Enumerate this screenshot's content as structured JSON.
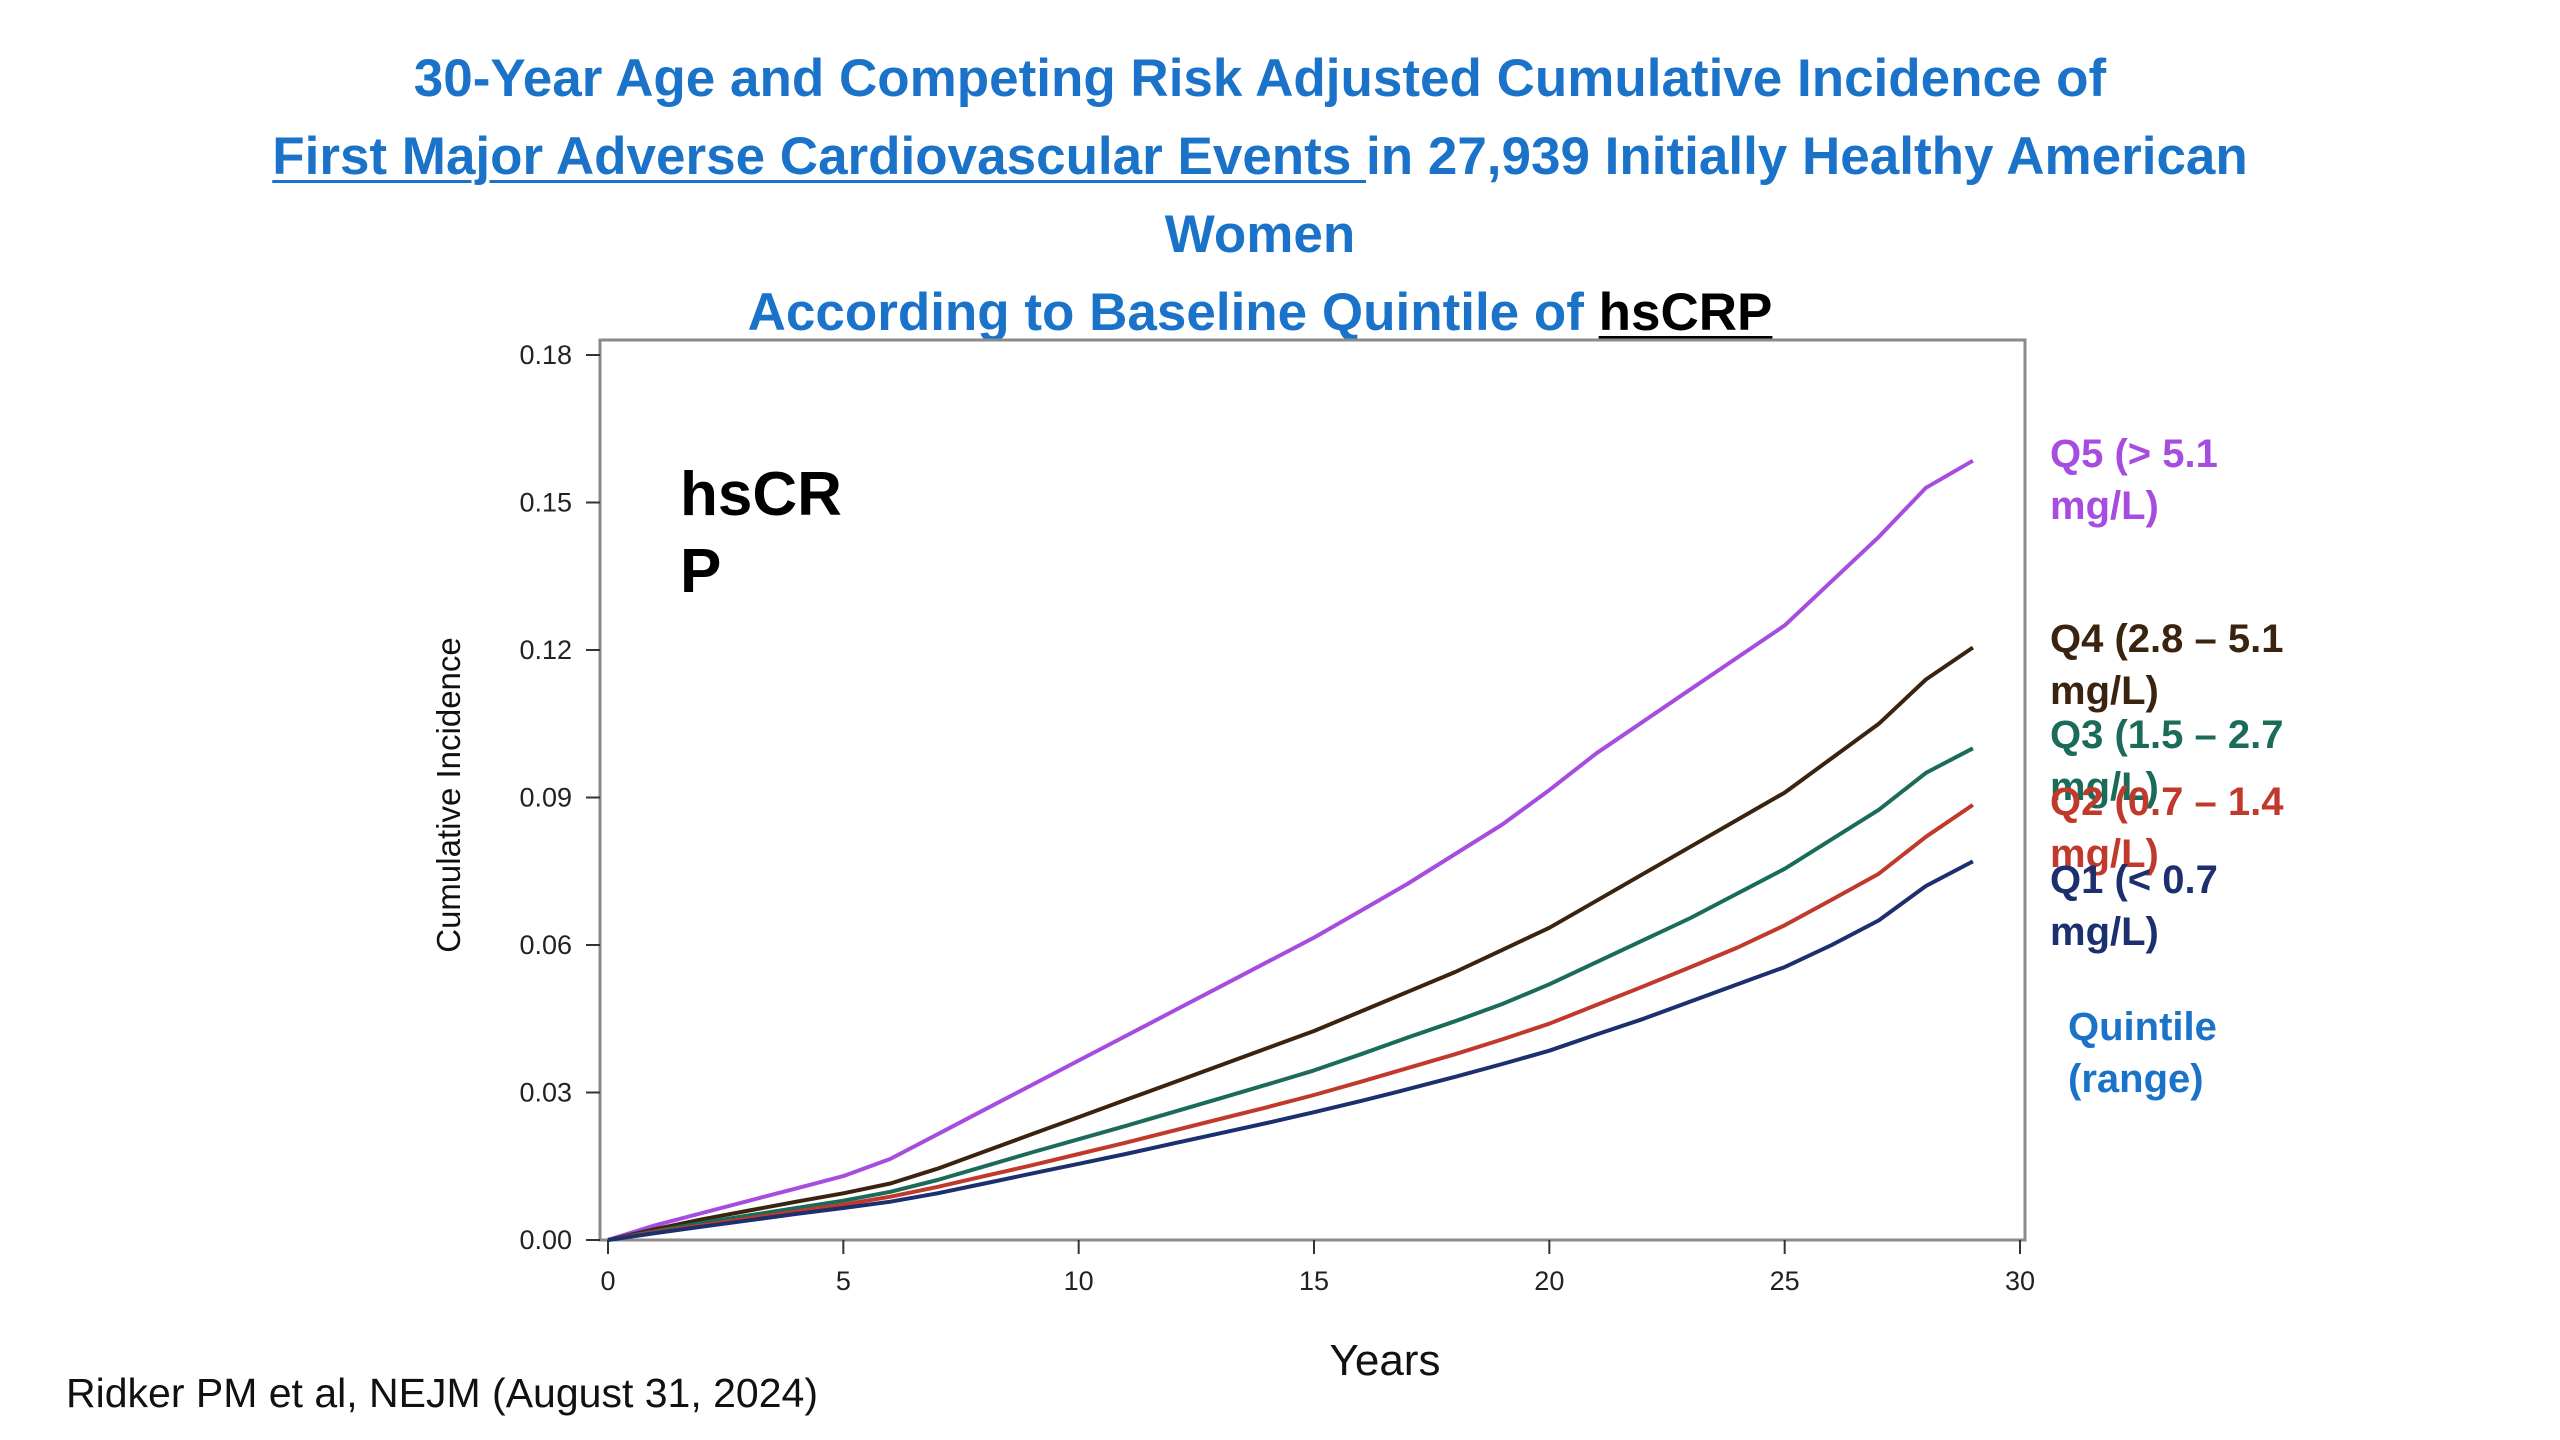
{
  "title": {
    "line1": "30-Year Age and Competing Risk Adjusted Cumulative Incidence of",
    "line2_underlined": "First Major Adverse Cardiovascular Events ",
    "line2_rest": "in 27,939 Initially Healthy American",
    "line3": "Women",
    "line4_prefix": "According to Baseline Quintile of ",
    "line4_highlight": "hsCRP"
  },
  "citation": "Ridker PM et al, NEJM (August 31, 2024)",
  "chart_data": {
    "type": "line",
    "xlabel": "Years",
    "ylabel": "Cumulative Incidence",
    "xlim": [
      0,
      30
    ],
    "ylim": [
      0,
      0.18
    ],
    "x_ticks": [
      "0",
      "5",
      "10",
      "15",
      "20",
      "25",
      "30"
    ],
    "y_ticks": [
      "0.00",
      "0.03",
      "0.06",
      "0.09",
      "0.12",
      "0.15",
      "0.18"
    ],
    "grid": false,
    "inset_text": [
      "hsCR",
      "P"
    ],
    "legend_title": [
      "Quintile",
      "(range)"
    ],
    "legend_title_color": "#1a73c8",
    "x": [
      0,
      1,
      2,
      3,
      4,
      5,
      6,
      7,
      8,
      9,
      10,
      11,
      12,
      13,
      14,
      15,
      16,
      17,
      18,
      19,
      20,
      21,
      22,
      23,
      24,
      25,
      26,
      27,
      28,
      29
    ],
    "series": [
      {
        "label_lines": [
          "Q5  (> 5.1",
          "mg/L)"
        ],
        "color": "#a64de0",
        "values": [
          0,
          0.003,
          0.0055,
          0.008,
          0.0105,
          0.013,
          0.0165,
          0.0215,
          0.0265,
          0.0315,
          0.0365,
          0.0415,
          0.0465,
          0.0515,
          0.0565,
          0.0615,
          0.067,
          0.0725,
          0.0785,
          0.0845,
          0.0915,
          0.099,
          0.1055,
          0.112,
          0.1185,
          0.125,
          0.134,
          0.143,
          0.153,
          0.1585
        ]
      },
      {
        "label_lines": [
          "Q4  (2.8 – 5.1",
          "mg/L)"
        ],
        "color": "#3a2410",
        "values": [
          0,
          0.0022,
          0.0042,
          0.006,
          0.0078,
          0.0095,
          0.0115,
          0.0145,
          0.018,
          0.0215,
          0.025,
          0.0285,
          0.032,
          0.0355,
          0.039,
          0.0425,
          0.0465,
          0.0505,
          0.0545,
          0.059,
          0.0635,
          0.069,
          0.0745,
          0.08,
          0.0855,
          0.091,
          0.098,
          0.105,
          0.114,
          0.1205
        ]
      },
      {
        "label_lines": [
          "Q3  (1.5 – 2.7",
          "mg/L)"
        ],
        "color": "#1a6b5a",
        "values": [
          0,
          0.0018,
          0.0035,
          0.005,
          0.0065,
          0.008,
          0.0098,
          0.0122,
          0.015,
          0.0178,
          0.0205,
          0.0232,
          0.026,
          0.0288,
          0.0316,
          0.0345,
          0.0378,
          0.0412,
          0.0445,
          0.048,
          0.052,
          0.0565,
          0.061,
          0.0655,
          0.0705,
          0.0755,
          0.0815,
          0.0875,
          0.095,
          0.1
        ]
      },
      {
        "label_lines": [
          "Q2  (0.7 – 1.4",
          "mg/L)"
        ],
        "color": "#c0392b",
        "values": [
          0,
          0.0016,
          0.003,
          0.0044,
          0.0058,
          0.0072,
          0.0088,
          0.0108,
          0.013,
          0.0152,
          0.0175,
          0.0198,
          0.0222,
          0.0246,
          0.027,
          0.0295,
          0.0322,
          0.035,
          0.0378,
          0.0408,
          0.044,
          0.0478,
          0.0516,
          0.0555,
          0.0595,
          0.064,
          0.0692,
          0.0745,
          0.082,
          0.0885
        ]
      },
      {
        "label_lines": [
          "Q1  (< 0.7",
          "mg/L)"
        ],
        "color": "#1c2f6e",
        "values": [
          0,
          0.0014,
          0.0027,
          0.004,
          0.0053,
          0.0065,
          0.0078,
          0.0095,
          0.0115,
          0.0135,
          0.0155,
          0.0175,
          0.0196,
          0.0217,
          0.0238,
          0.026,
          0.0283,
          0.0307,
          0.0332,
          0.0358,
          0.0385,
          0.0418,
          0.045,
          0.0485,
          0.052,
          0.0555,
          0.06,
          0.065,
          0.072,
          0.077
        ]
      }
    ]
  }
}
